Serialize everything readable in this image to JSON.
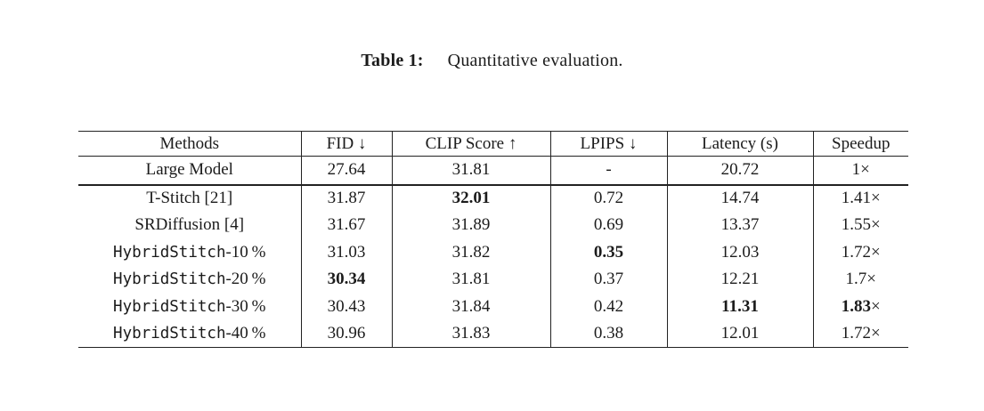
{
  "caption": {
    "label": "Table 1:",
    "text": "Quantitative evaluation."
  },
  "table": {
    "headers": [
      "Methods",
      "FID ↓",
      "CLIP Score ↑",
      "LPIPS ↓",
      "Latency (s)",
      "Speedup"
    ],
    "baseline_rows": [
      {
        "method": "Large Model",
        "cells": [
          {
            "v": "27.64"
          },
          {
            "v": "31.81"
          },
          {
            "v": "-"
          },
          {
            "v": "20.72"
          },
          {
            "v": "1",
            "x": true
          }
        ]
      }
    ],
    "body_rows": [
      {
        "method": "T-Stitch [21]",
        "cells": [
          {
            "v": "31.87"
          },
          {
            "v": "32.01",
            "b": true
          },
          {
            "v": "0.72"
          },
          {
            "v": "14.74"
          },
          {
            "v": "1.41",
            "x": true
          }
        ]
      },
      {
        "method": "SRDiffusion [4]",
        "cells": [
          {
            "v": "31.67"
          },
          {
            "v": "31.89"
          },
          {
            "v": "0.69"
          },
          {
            "v": "13.37"
          },
          {
            "v": "1.55",
            "x": true
          }
        ]
      },
      {
        "method_mono": "HybridStitch",
        "method_suffix": "-10 %",
        "cells": [
          {
            "v": "31.03"
          },
          {
            "v": "31.82"
          },
          {
            "v": "0.35",
            "b": true
          },
          {
            "v": "12.03"
          },
          {
            "v": "1.72",
            "x": true
          }
        ]
      },
      {
        "method_mono": "HybridStitch",
        "method_suffix": "-20 %",
        "cells": [
          {
            "v": "30.34",
            "b": true
          },
          {
            "v": "31.81"
          },
          {
            "v": "0.37"
          },
          {
            "v": "12.21"
          },
          {
            "v": "1.7",
            "x": true
          }
        ]
      },
      {
        "method_mono": "HybridStitch",
        "method_suffix": "-30 %",
        "cells": [
          {
            "v": "30.43"
          },
          {
            "v": "31.84"
          },
          {
            "v": "0.42"
          },
          {
            "v": "11.31",
            "b": true
          },
          {
            "v": "1.83",
            "b": true,
            "x": true
          }
        ]
      },
      {
        "method_mono": "HybridStitch",
        "method_suffix": "-40 %",
        "cells": [
          {
            "v": "30.96"
          },
          {
            "v": "31.83"
          },
          {
            "v": "0.38"
          },
          {
            "v": "12.01"
          },
          {
            "v": "1.72",
            "x": true
          }
        ]
      }
    ],
    "times_symbol": "×"
  }
}
